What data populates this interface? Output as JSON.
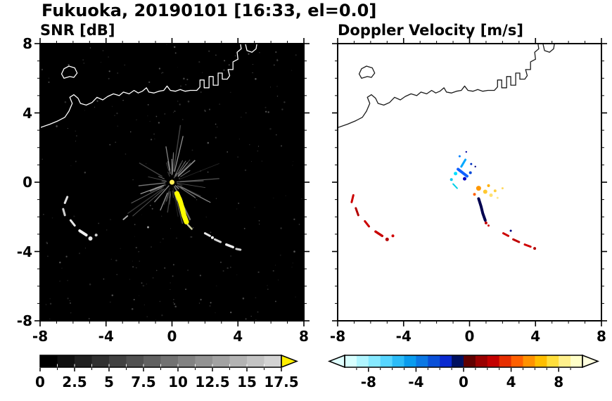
{
  "title": "Fukuoka, 20190101 [16:33, el=0.0]",
  "station": "Fukuoka",
  "date": "20190101",
  "time": "16:33",
  "elevation": "el=0.0",
  "chart_data": {
    "type": "heatmap",
    "title": "Fukuoka, 20190101 [16:33, el=0.0]",
    "axes": {
      "x_range": [
        -8,
        8
      ],
      "y_range": [
        -8,
        8
      ],
      "x_ticks": [
        -8,
        -4,
        0,
        4,
        8
      ],
      "x_tick_labels": [
        "-8",
        "-4",
        "0",
        "4",
        "8"
      ],
      "y_ticks": [
        -8,
        -4,
        0,
        4,
        8
      ],
      "y_tick_labels": [
        "-8",
        "-4",
        "0",
        "4",
        "8"
      ],
      "minor_step": 1
    },
    "coastline": {
      "main": [
        [
          -8.0,
          3.15
        ],
        [
          -7.4,
          3.35
        ],
        [
          -6.9,
          3.55
        ],
        [
          -6.5,
          3.75
        ],
        [
          -6.25,
          4.1
        ],
        [
          -6.05,
          4.55
        ],
        [
          -6.2,
          4.9
        ],
        [
          -5.95,
          5.05
        ],
        [
          -5.7,
          4.85
        ],
        [
          -5.55,
          4.55
        ],
        [
          -5.2,
          4.45
        ],
        [
          -4.85,
          4.6
        ],
        [
          -4.55,
          4.9
        ],
        [
          -4.2,
          4.75
        ],
        [
          -3.9,
          4.95
        ],
        [
          -3.55,
          5.1
        ],
        [
          -3.2,
          5.0
        ],
        [
          -2.95,
          5.2
        ],
        [
          -2.6,
          5.1
        ],
        [
          -2.3,
          5.3
        ],
        [
          -2.05,
          5.15
        ],
        [
          -1.8,
          5.25
        ],
        [
          -1.55,
          5.45
        ],
        [
          -1.4,
          5.2
        ],
        [
          -1.1,
          5.15
        ],
        [
          -0.8,
          5.25
        ],
        [
          -0.5,
          5.3
        ],
        [
          -0.3,
          5.55
        ],
        [
          -0.1,
          5.3
        ],
        [
          0.2,
          5.25
        ],
        [
          0.5,
          5.35
        ],
        [
          0.8,
          5.25
        ],
        [
          1.1,
          5.3
        ],
        [
          1.5,
          5.3
        ],
        [
          1.7,
          5.5
        ],
        [
          1.7,
          5.9
        ],
        [
          1.95,
          5.9
        ],
        [
          1.95,
          5.45
        ],
        [
          2.25,
          5.45
        ],
        [
          2.25,
          6.1
        ],
        [
          2.5,
          6.1
        ],
        [
          2.5,
          5.6
        ],
        [
          2.8,
          5.6
        ],
        [
          2.8,
          6.3
        ],
        [
          3.05,
          6.3
        ],
        [
          3.05,
          5.95
        ],
        [
          3.35,
          5.95
        ],
        [
          3.5,
          6.15
        ],
        [
          3.4,
          6.5
        ],
        [
          3.7,
          6.5
        ],
        [
          3.7,
          6.95
        ],
        [
          4.0,
          7.1
        ],
        [
          3.95,
          7.5
        ],
        [
          4.2,
          7.7
        ],
        [
          4.15,
          8.0
        ]
      ],
      "island": [
        [
          -6.55,
          6.0
        ],
        [
          -6.2,
          6.1
        ],
        [
          -5.95,
          6.05
        ],
        [
          -5.75,
          6.3
        ],
        [
          -5.9,
          6.6
        ],
        [
          -6.25,
          6.7
        ],
        [
          -6.55,
          6.55
        ],
        [
          -6.7,
          6.25
        ]
      ],
      "fragment": [
        [
          4.45,
          8.0
        ],
        [
          4.55,
          7.6
        ],
        [
          4.85,
          7.5
        ],
        [
          5.1,
          7.7
        ],
        [
          5.15,
          8.0
        ]
      ]
    },
    "subplots": [
      {
        "name": "SNR [dB]",
        "background": "#000000",
        "coast_color": "#ffffff",
        "colorbar": {
          "min": 0,
          "max": 17.5,
          "step": 1.25,
          "tick_values": [
            0,
            2.5,
            5,
            7.5,
            10,
            12.5,
            15,
            17.5
          ],
          "tick_labels": [
            "0",
            "2.5",
            "5",
            "7.5",
            "10",
            "12.5",
            "15",
            "17.5"
          ],
          "colors": [
            "#000000",
            "#101010",
            "#202020",
            "#313131",
            "#414141",
            "#515151",
            "#616161",
            "#727272",
            "#828282",
            "#929292",
            "#a2a2a2",
            "#b3b3b3",
            "#c3c3c3",
            "#d3d3d3"
          ],
          "over_arrow_color": "#ffee00"
        },
        "noise": {
          "streak_count": 64,
          "streak_seed": 7,
          "speckle_count": 260,
          "speckle_seed": 13
        },
        "features": [
          {
            "t": "dot",
            "x": 0,
            "y": 0,
            "r": 3.5,
            "c": "#ffee55"
          },
          {
            "t": "stroke",
            "pts": [
              [
                0.3,
                -0.65
              ],
              [
                0.5,
                -1.1
              ],
              [
                0.62,
                -1.5
              ],
              [
                0.72,
                -1.9
              ],
              [
                0.88,
                -2.3
              ]
            ],
            "w": 7,
            "c": "#ffff00"
          },
          {
            "t": "stroke",
            "pts": [
              [
                0.95,
                -2.45
              ],
              [
                1.2,
                -2.7
              ]
            ],
            "w": 2.5,
            "c": "#cfcf9f"
          },
          {
            "t": "stroke",
            "pts": [
              [
                2.0,
                -2.95
              ],
              [
                2.3,
                -3.1
              ]
            ],
            "w": 3,
            "c": "#e8e8e8"
          },
          {
            "t": "dot",
            "x": 2.45,
            "y": -3.2,
            "r": 2,
            "c": "#ffffff"
          },
          {
            "t": "stroke",
            "pts": [
              [
                2.6,
                -3.3
              ],
              [
                2.95,
                -3.45
              ]
            ],
            "w": 3,
            "c": "#d8d8d8"
          },
          {
            "t": "stroke",
            "pts": [
              [
                3.3,
                -3.6
              ],
              [
                3.7,
                -3.75
              ]
            ],
            "w": 3.5,
            "c": "#eeeeee"
          },
          {
            "t": "stroke",
            "pts": [
              [
                3.9,
                -3.85
              ],
              [
                4.15,
                -3.9
              ]
            ],
            "w": 3,
            "c": "#cccccc"
          },
          {
            "t": "stroke",
            "pts": [
              [
                -6.35,
                -0.85
              ],
              [
                -6.5,
                -1.2
              ]
            ],
            "w": 3,
            "c": "#e0e0e0"
          },
          {
            "t": "stroke",
            "pts": [
              [
                -6.6,
                -1.55
              ],
              [
                -6.5,
                -1.9
              ]
            ],
            "w": 3,
            "c": "#d0d0d0"
          },
          {
            "t": "stroke",
            "pts": [
              [
                -6.15,
                -2.2
              ],
              [
                -5.9,
                -2.5
              ]
            ],
            "w": 3,
            "c": "#e8e8e8"
          },
          {
            "t": "stroke",
            "pts": [
              [
                -5.6,
                -2.8
              ],
              [
                -5.2,
                -3.05
              ]
            ],
            "w": 4,
            "c": "#f0f0f0"
          },
          {
            "t": "dot",
            "x": -4.95,
            "y": -3.25,
            "r": 3,
            "c": "#e8e8e8"
          },
          {
            "t": "dot",
            "x": -4.6,
            "y": -3.05,
            "r": 2,
            "c": "#cccccc"
          },
          {
            "t": "stroke",
            "pts": [
              [
                -2.95,
                -2.15
              ],
              [
                -2.7,
                -1.95
              ]
            ],
            "w": 2,
            "c": "#aaaaaa"
          },
          {
            "t": "dot",
            "x": -1.45,
            "y": -2.6,
            "r": 1.5,
            "c": "#999999"
          }
        ]
      },
      {
        "name": "Doppler Velocity [m/s]",
        "background": "#ffffff",
        "coast_color": "#1a1a1a",
        "colorbar": {
          "min": -10,
          "max": 10,
          "step": 1,
          "tick_values": [
            -8,
            -4,
            0,
            4,
            8
          ],
          "tick_labels": [
            "-8",
            "-4",
            "0",
            "4",
            "8"
          ],
          "colors": [
            "#d8ffff",
            "#b0f5ff",
            "#86e9ff",
            "#58d6ff",
            "#2cbcf8",
            "#0a9cee",
            "#0b78e4",
            "#0a50d8",
            "#0a2ad0",
            "#001060",
            "#600000",
            "#990000",
            "#c30000",
            "#e62e00",
            "#ff6000",
            "#ff9200",
            "#ffbe00",
            "#ffdf3c",
            "#fff08c",
            "#ffffc8"
          ],
          "under_arrow_color": "#e0ffff",
          "over_arrow_color": "#ffffdf"
        },
        "features": [
          {
            "t": "stroke",
            "pts": [
              [
                -0.15,
                0.35
              ],
              [
                -0.7,
                0.75
              ]
            ],
            "w": 4,
            "c": "#1060ff"
          },
          {
            "t": "stroke",
            "pts": [
              [
                -0.5,
                0.9
              ],
              [
                -0.25,
                1.3
              ]
            ],
            "w": 3,
            "c": "#00a8ff"
          },
          {
            "t": "stroke",
            "pts": [
              [
                -1.0,
                -0.1
              ],
              [
                -0.75,
                -0.35
              ]
            ],
            "w": 2,
            "c": "#00d0e8"
          },
          {
            "t": "dot",
            "x": -0.85,
            "y": 0.5,
            "r": 2.5,
            "c": "#00e0ff"
          },
          {
            "t": "dot",
            "x": -0.3,
            "y": 0.2,
            "r": 2.5,
            "c": "#0000c0"
          },
          {
            "t": "dot",
            "x": 0.05,
            "y": 0.55,
            "r": 2,
            "c": "#0048d8"
          },
          {
            "t": "dot",
            "x": -1.1,
            "y": 0.15,
            "r": 2,
            "c": "#00c8f0"
          },
          {
            "t": "dot",
            "x": -0.6,
            "y": 1.5,
            "r": 1.5,
            "c": "#0080ff"
          },
          {
            "t": "dot",
            "x": 0.1,
            "y": 1.05,
            "r": 1.5,
            "c": "#0030c0"
          },
          {
            "t": "dot",
            "x": 0.35,
            "y": 0.9,
            "r": 1.2,
            "c": "#000080"
          },
          {
            "t": "dot",
            "x": -0.2,
            "y": 1.75,
            "r": 1.2,
            "c": "#0000a0"
          },
          {
            "t": "dot",
            "x": 0.55,
            "y": -0.35,
            "r": 3.5,
            "c": "#ff9800"
          },
          {
            "t": "dot",
            "x": 0.95,
            "y": -0.55,
            "r": 3,
            "c": "#ffc830"
          },
          {
            "t": "dot",
            "x": 1.3,
            "y": -0.75,
            "r": 2.5,
            "c": "#ffe070"
          },
          {
            "t": "dot",
            "x": 0.3,
            "y": -0.7,
            "r": 2,
            "c": "#ff6000"
          },
          {
            "t": "dot",
            "x": 1.55,
            "y": -0.5,
            "r": 2,
            "c": "#ffd040"
          },
          {
            "t": "dot",
            "x": 1.15,
            "y": -0.2,
            "r": 2,
            "c": "#ffb000"
          },
          {
            "t": "dot",
            "x": 1.7,
            "y": -0.9,
            "r": 1.5,
            "c": "#ffe890"
          },
          {
            "t": "dot",
            "x": 2.0,
            "y": -0.35,
            "r": 1.5,
            "c": "#ffd860"
          },
          {
            "t": "stroke",
            "pts": [
              [
                0.55,
                -0.95
              ],
              [
                0.7,
                -1.4
              ],
              [
                0.8,
                -1.8
              ],
              [
                0.95,
                -2.2
              ]
            ],
            "w": 4,
            "c": "#000050"
          },
          {
            "t": "dot",
            "x": 1.0,
            "y": -2.35,
            "r": 2,
            "c": "#c00000"
          },
          {
            "t": "dot",
            "x": 1.15,
            "y": -2.5,
            "r": 1.5,
            "c": "#d40000"
          },
          {
            "t": "stroke",
            "pts": [
              [
                -7.05,
                -0.75
              ],
              [
                -7.15,
                -1.15
              ]
            ],
            "w": 3,
            "c": "#cc0000"
          },
          {
            "t": "stroke",
            "pts": [
              [
                -6.9,
                -1.5
              ],
              [
                -6.75,
                -1.9
              ]
            ],
            "w": 3,
            "c": "#b40000"
          },
          {
            "t": "stroke",
            "pts": [
              [
                -6.35,
                -2.25
              ],
              [
                -6.1,
                -2.55
              ]
            ],
            "w": 3,
            "c": "#cc0000"
          },
          {
            "t": "stroke",
            "pts": [
              [
                -5.7,
                -2.85
              ],
              [
                -5.3,
                -3.1
              ]
            ],
            "w": 3.5,
            "c": "#c80000"
          },
          {
            "t": "dot",
            "x": -5.0,
            "y": -3.3,
            "r": 2.5,
            "c": "#b40000"
          },
          {
            "t": "dot",
            "x": -4.65,
            "y": -3.1,
            "r": 2,
            "c": "#d00000"
          },
          {
            "t": "stroke",
            "pts": [
              [
                2.05,
                -2.95
              ],
              [
                2.35,
                -3.1
              ]
            ],
            "w": 3,
            "c": "#cc0000"
          },
          {
            "t": "stroke",
            "pts": [
              [
                2.65,
                -3.3
              ],
              [
                3.0,
                -3.45
              ]
            ],
            "w": 3,
            "c": "#c00000"
          },
          {
            "t": "stroke",
            "pts": [
              [
                3.35,
                -3.6
              ],
              [
                3.7,
                -3.72
              ]
            ],
            "w": 3,
            "c": "#d00000"
          },
          {
            "t": "dot",
            "x": 3.95,
            "y": -3.82,
            "r": 2,
            "c": "#b40000"
          },
          {
            "t": "dot",
            "x": 2.5,
            "y": -2.8,
            "r": 1.5,
            "c": "#000080"
          }
        ]
      }
    ]
  }
}
